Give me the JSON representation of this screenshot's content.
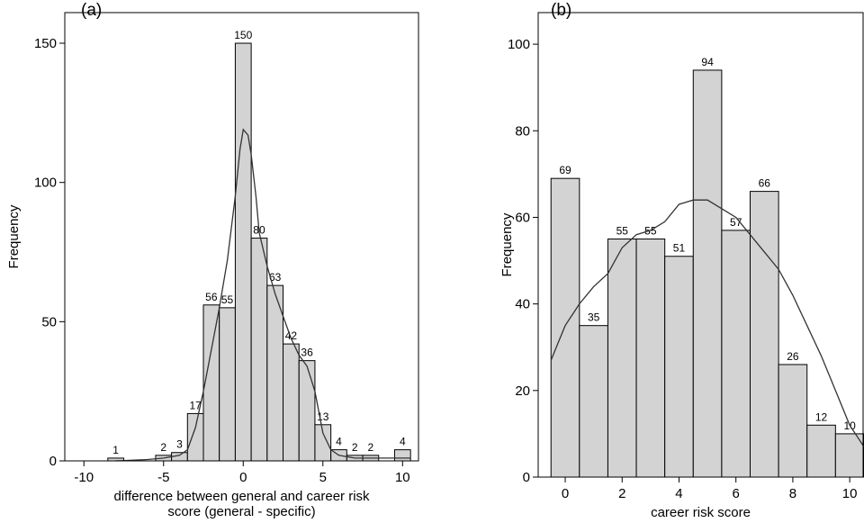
{
  "chart_data": [
    {
      "type": "histogram",
      "panel": "(a)",
      "ylabel": "Frequency",
      "xlabel": [
        "difference between general and career risk",
        "score (general - specific)"
      ],
      "bins": [
        -8.5,
        -7.5,
        -6.5,
        -5.5,
        -4.5,
        -3.5,
        -2.5,
        -1.5,
        -0.5,
        0.5,
        1.5,
        2.5,
        3.5,
        4.5,
        5.5,
        6.5,
        7.5,
        8.5,
        9.5,
        10.5
      ],
      "values": [
        1,
        0,
        0,
        2,
        3,
        17,
        56,
        55,
        150,
        80,
        63,
        42,
        36,
        13,
        4,
        2,
        2,
        0,
        4
      ],
      "color": "#d3d3d3",
      "xlim": [
        -11.2,
        11.0
      ],
      "ylim": [
        0,
        161
      ],
      "xticks": [
        -10,
        -5,
        0,
        5,
        10
      ],
      "yticks": [
        0,
        50,
        100,
        150
      ],
      "curve": {
        "x": [
          -8,
          -6,
          -5,
          -4,
          -3.5,
          -3,
          -2.5,
          -2,
          -1.5,
          -1,
          -0.5,
          -0.2,
          0,
          0.3,
          0.5,
          0.8,
          1,
          1.5,
          2,
          2.5,
          3,
          3.5,
          4,
          4.5,
          5,
          5.5,
          6,
          7,
          8,
          9,
          10,
          10.5
        ],
        "y": [
          0,
          0.5,
          1,
          2,
          4,
          12,
          25,
          40,
          55,
          72,
          95,
          112,
          119,
          117,
          110,
          95,
          82,
          70,
          60,
          52,
          44,
          38,
          34,
          25,
          10,
          4,
          2,
          1,
          1,
          1,
          1,
          1
        ]
      }
    },
    {
      "type": "histogram",
      "panel": "(b)",
      "ylabel": "Frequency",
      "xlabel": [
        "career risk score"
      ],
      "bins": [
        -0.5,
        0.5,
        1.5,
        2.5,
        3.5,
        4.5,
        5.5,
        6.5,
        7.5,
        8.5,
        9.5,
        10.5
      ],
      "values": [
        69,
        35,
        55,
        55,
        51,
        94,
        57,
        66,
        26,
        12,
        10
      ],
      "color": "#d3d3d3",
      "xlim": [
        -0.95,
        10.47
      ],
      "ylim": [
        0,
        107.3
      ],
      "xticks": [
        0,
        2,
        4,
        6,
        8,
        10
      ],
      "yticks": [
        0,
        20,
        40,
        60,
        80,
        100
      ],
      "curve": {
        "x": [
          -0.5,
          0,
          0.5,
          1,
          1.5,
          2,
          2.5,
          3,
          3.5,
          4,
          4.5,
          5,
          5.5,
          6,
          6.5,
          7,
          7.5,
          8,
          8.5,
          9,
          9.5,
          10,
          10.5
        ],
        "y": [
          27,
          35,
          40,
          44,
          47,
          53,
          56,
          57,
          59,
          63,
          64,
          64,
          62,
          60,
          56,
          52,
          48,
          42,
          35,
          28,
          20,
          12,
          7
        ]
      }
    }
  ]
}
